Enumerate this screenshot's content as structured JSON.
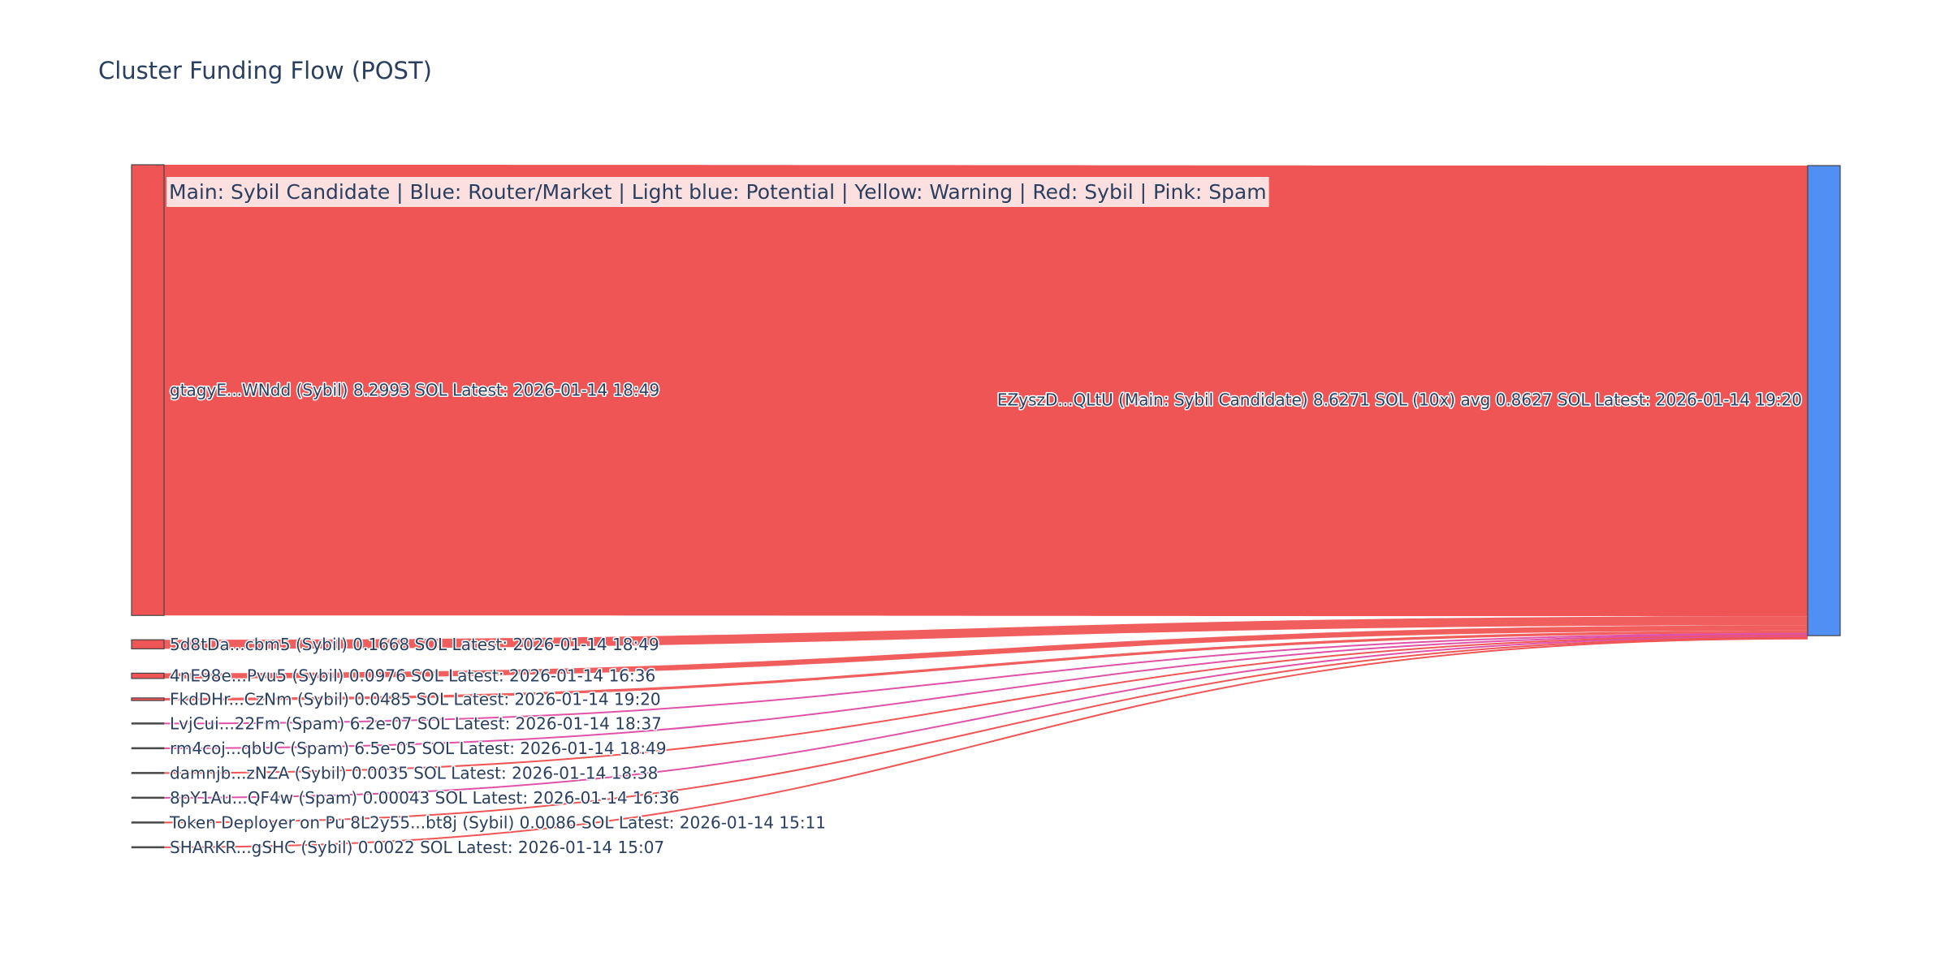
{
  "chart_data": {
    "type": "sankey",
    "title": "Cluster Funding Flow (POST)",
    "legend_text": "Main: Sybil Candidate  |  Blue: Router/Market | Light blue: Potential | Yellow: Warning | Red: Sybil | Pink: Spam",
    "colors": {
      "sybil": "#ef5555",
      "spam": "#e052a8",
      "main": "#5090f5",
      "small_node": "#4a4a4a",
      "node_border": "#444444"
    },
    "target": {
      "label": "EZyszD...QLtU (Main: Sybil Candidate) 8.6271 SOL (10x) avg 0.8627 SOL Latest: 2026-01-14 19:20",
      "value": 8.6271,
      "category": "main"
    },
    "sources": [
      {
        "label": "gtagyE...WNdd (Sybil) 8.2993 SOL Latest: 2026-01-14 18:49",
        "value": 8.2993,
        "category": "sybil"
      },
      {
        "label": "5d8tDa...cbm5 (Sybil) 0.1668 SOL Latest: 2026-01-14 18:49",
        "value": 0.1668,
        "category": "sybil"
      },
      {
        "label": "4nE98e...Pvu5 (Sybil) 0.0976 SOL Latest: 2026-01-14 16:36",
        "value": 0.0976,
        "category": "sybil"
      },
      {
        "label": "FkdDHr...CzNm (Sybil) 0.0485 SOL Latest: 2026-01-14 19:20",
        "value": 0.0485,
        "category": "sybil"
      },
      {
        "label": "LvjCui...22Fm (Spam) 6.2e-07 SOL Latest: 2026-01-14 18:37",
        "value": 6.2e-07,
        "category": "spam"
      },
      {
        "label": "rm4coj...qbUC (Spam) 6.5e-05 SOL Latest: 2026-01-14 18:49",
        "value": 6.5e-05,
        "category": "spam"
      },
      {
        "label": "damnjb...zNZA (Sybil) 0.0035 SOL Latest: 2026-01-14 18:38",
        "value": 0.0035,
        "category": "sybil"
      },
      {
        "label": "8pY1Au...QF4w (Spam) 0.00043 SOL Latest: 2026-01-14 16:36",
        "value": 0.00043,
        "category": "spam"
      },
      {
        "label": "Token Deployer on Pu 8L2y55...bt8j (Sybil) 0.0086 SOL Latest: 2026-01-14 15:11",
        "value": 0.0086,
        "category": "sybil"
      },
      {
        "label": "SHARKR...gSHC (Sybil) 0.0022 SOL Latest: 2026-01-14 15:07",
        "value": 0.0022,
        "category": "sybil"
      }
    ]
  }
}
